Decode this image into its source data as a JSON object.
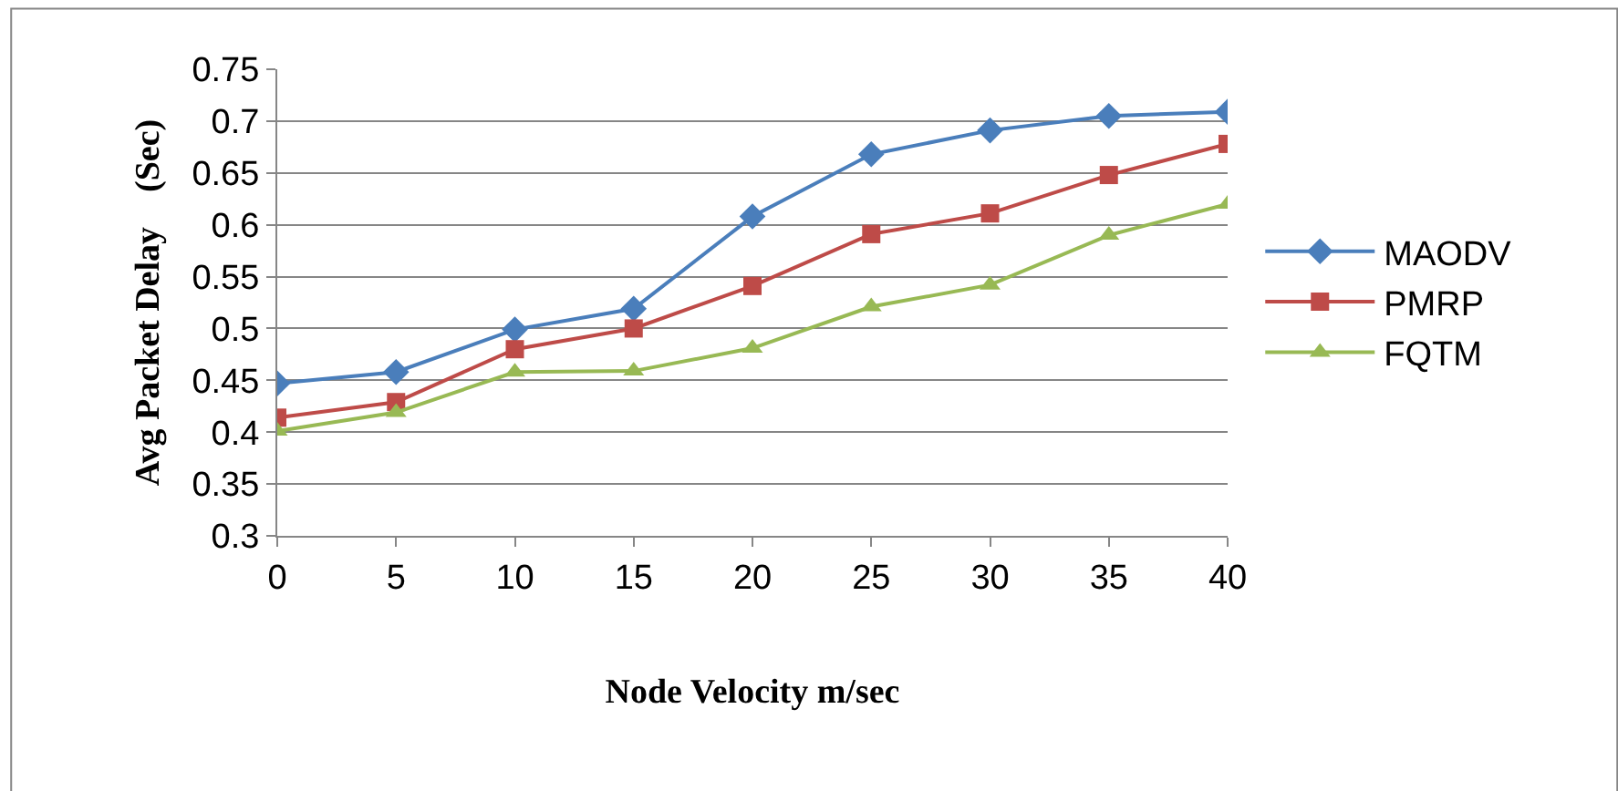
{
  "chart_data": {
    "type": "line",
    "xlabel": "Node Velocity m/sec",
    "ylabel": "Avg Packet Delay    (Sec)",
    "x": [
      0,
      5,
      10,
      15,
      20,
      25,
      30,
      35,
      40
    ],
    "xlim": [
      0,
      40
    ],
    "xticks": [
      0,
      5,
      10,
      15,
      20,
      25,
      30,
      35,
      40
    ],
    "ylim": [
      0.3,
      0.75
    ],
    "yticks": [
      0.3,
      0.35,
      0.4,
      0.45,
      0.5,
      0.55,
      0.6,
      0.65,
      0.7,
      0.75
    ],
    "grid": "y",
    "legend": "right",
    "line_style": "solid",
    "series": [
      {
        "name": "MAODV",
        "color": "#4a7ebb",
        "marker": "diamond",
        "values": [
          0.447,
          0.458,
          0.499,
          0.519,
          0.608,
          0.668,
          0.691,
          0.705,
          0.709
        ]
      },
      {
        "name": "PMRP",
        "color": "#be4b48",
        "marker": "square",
        "values": [
          0.414,
          0.429,
          0.48,
          0.5,
          0.541,
          0.591,
          0.611,
          0.648,
          0.678
        ]
      },
      {
        "name": "FQTM",
        "color": "#98b954",
        "marker": "triangle",
        "values": [
          0.401,
          0.419,
          0.458,
          0.459,
          0.481,
          0.521,
          0.542,
          0.59,
          0.62
        ]
      }
    ]
  }
}
